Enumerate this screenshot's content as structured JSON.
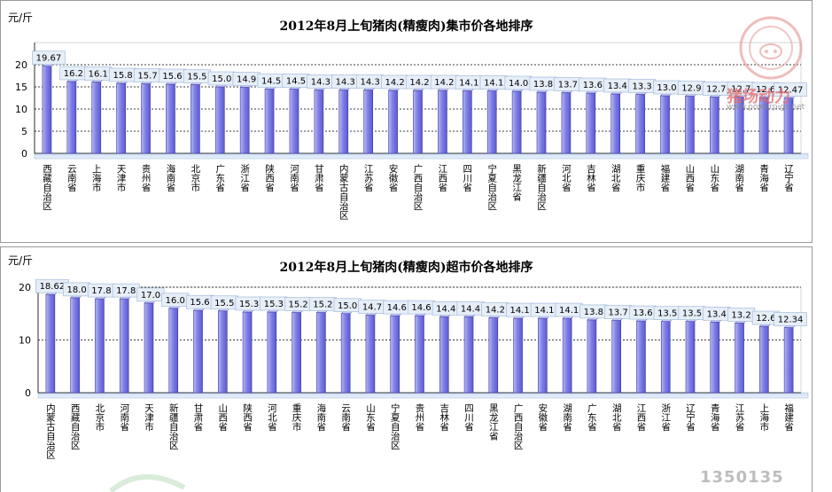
{
  "chart_data": [
    {
      "type": "bar",
      "title": "2012年8月上旬猪肉(精瘦肉)集市价各地排序",
      "ylabel": "元/斤",
      "ylim": [
        0,
        25
      ],
      "yticks": [
        0,
        5,
        10,
        15,
        20
      ],
      "bar_color": "#8080e6",
      "categories": [
        "西藏自治区",
        "云南省",
        "上海市",
        "天津市",
        "贵州省",
        "海南省",
        "北京市",
        "广东省",
        "浙江省",
        "陕西省",
        "河南省",
        "甘肃省",
        "内蒙古自治区",
        "江苏省",
        "安徽省",
        "广西自治区",
        "江西省",
        "四川省",
        "宁夏自治区",
        "黑龙江省",
        "新疆自治区",
        "河北省",
        "吉林省",
        "湖北省",
        "重庆市",
        "福建省",
        "山西省",
        "山东省",
        "湖南省",
        "青海省",
        "辽宁省"
      ],
      "values": [
        19.67,
        16.2,
        16.1,
        15.8,
        15.7,
        15.6,
        15.5,
        15.0,
        14.9,
        14.5,
        14.5,
        14.3,
        14.3,
        14.3,
        14.2,
        14.2,
        14.2,
        14.1,
        14.1,
        14.0,
        13.8,
        13.7,
        13.6,
        13.4,
        13.3,
        13.0,
        12.9,
        12.7,
        12.7,
        12.6,
        12.47
      ],
      "data_labels": [
        "19.67",
        "16.2",
        "16.1",
        "15.8",
        "15.7",
        "15.6",
        "15.5",
        "15.0",
        "14.9",
        "14.5",
        "14.5",
        "14.3",
        "14.3",
        "14.3",
        "14.2",
        "14.2",
        "14.2",
        "14.1",
        "14.1",
        "14.0",
        "13.8",
        "13.7",
        "13.6",
        "13.4",
        "13.3",
        "13.0",
        "12.9",
        "12.7",
        "12.7",
        "12.6",
        "12.47"
      ]
    },
    {
      "type": "bar",
      "title": "2012年8月上旬猪肉(精瘦肉)超市价各地排序",
      "ylabel": "元/斤",
      "ylim": [
        0,
        20
      ],
      "yticks": [
        0,
        10,
        20
      ],
      "bar_color": "#8080e6",
      "categories": [
        "内蒙古自治区",
        "西藏自治区",
        "北京市",
        "河南省",
        "天津市",
        "新疆自治区",
        "甘肃省",
        "山西省",
        "陕西省",
        "河北省",
        "重庆市",
        "海南省",
        "云南省",
        "山东省",
        "宁夏自治区",
        "贵州省",
        "吉林省",
        "四川省",
        "黑龙江省",
        "广西自治区",
        "安徽省",
        "湖南省",
        "广东省",
        "湖北省",
        "江西省",
        "浙江省",
        "辽宁省",
        "青海省",
        "江苏省",
        "上海市",
        "福建省"
      ],
      "values": [
        18.62,
        18.0,
        17.8,
        17.8,
        17.0,
        16.0,
        15.6,
        15.5,
        15.3,
        15.3,
        15.2,
        15.2,
        15.0,
        14.7,
        14.6,
        14.6,
        14.4,
        14.4,
        14.2,
        14.1,
        14.1,
        14.1,
        13.8,
        13.7,
        13.6,
        13.5,
        13.5,
        13.4,
        13.2,
        12.6,
        12.34
      ],
      "data_labels": [
        "18.62",
        "18.0",
        "17.8",
        "17.8",
        "17.0",
        "16.0",
        "15.6",
        "15.5",
        "15.3",
        "15.3",
        "15.2",
        "15.2",
        "15.0",
        "14.7",
        "14.6",
        "14.6",
        "14.4",
        "14.4",
        "14.2",
        "14.1",
        "14.1",
        "14.1",
        "13.8",
        "13.7",
        "13.6",
        "13.5",
        "13.5",
        "13.4",
        "13.2",
        "12.6",
        "12.34"
      ]
    }
  ],
  "watermarks": {
    "logo_text": "猪场动力",
    "logo_url_text": "www.powerpigs.net",
    "bottom_text": "1350135",
    "logo_icon": "pig-logo-icon"
  }
}
